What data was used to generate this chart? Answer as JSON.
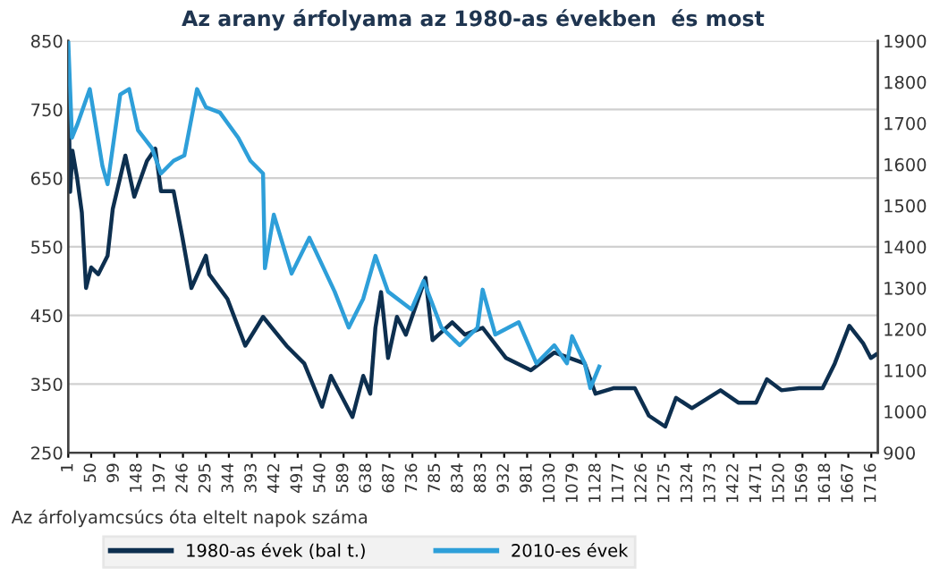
{
  "chart_data": {
    "type": "line",
    "title": "Az arany árfolyama az 1980-as években  és most",
    "xlabel": "Az árfolyamcsúcs óta eltelt napok száma",
    "xlim": [
      1,
      1730
    ],
    "xticks": [
      1,
      50,
      99,
      148,
      197,
      246,
      295,
      344,
      393,
      442,
      491,
      540,
      589,
      638,
      687,
      736,
      785,
      834,
      883,
      932,
      981,
      1030,
      1079,
      1128,
      1177,
      1226,
      1275,
      1324,
      1373,
      1422,
      1471,
      1520,
      1569,
      1618,
      1667,
      1716
    ],
    "ylim": [
      250,
      850
    ],
    "yticks": [
      250,
      350,
      450,
      550,
      650,
      750,
      850
    ],
    "y2lim": [
      900,
      1900
    ],
    "y2ticks": [
      900,
      1000,
      1100,
      1200,
      1300,
      1400,
      1500,
      1600,
      1700,
      1800,
      1900
    ],
    "grid": "y",
    "legend": "bottom",
    "line_style": "solid",
    "marker": "none",
    "series": [
      {
        "name": "1980-as évek (bal t.)",
        "color": "#0d2f4f",
        "x": [
          1,
          5,
          10,
          20,
          30,
          39,
          50,
          65,
          85,
          96,
          123,
          142,
          169,
          187,
          199,
          226,
          245,
          264,
          295,
          302,
          341,
          379,
          417,
          467,
          505,
          543,
          562,
          608,
          631,
          646,
          657,
          669,
          684,
          703,
          722,
          764,
          779,
          821,
          848,
          886,
          936,
          989,
          1039,
          1104,
          1127,
          1165,
          1211,
          1241,
          1276,
          1299,
          1333,
          1394,
          1432,
          1470,
          1493,
          1524,
          1562,
          1612,
          1638,
          1669,
          1699,
          1715,
          1726
        ],
        "values": [
          800,
          630,
          690,
          650,
          600,
          490,
          520,
          510,
          537,
          605,
          683,
          623,
          675,
          693,
          631,
          631,
          563,
          490,
          537,
          510,
          474,
          406,
          448,
          406,
          380,
          317,
          362,
          302,
          362,
          336,
          432,
          484,
          388,
          448,
          422,
          505,
          414,
          440,
          422,
          432,
          388,
          370,
          396,
          380,
          336,
          344,
          344,
          304,
          288,
          330,
          315,
          341,
          323,
          323,
          357,
          341,
          344,
          344,
          380,
          435,
          409,
          388,
          393
        ]
      },
      {
        "name": "2010-es évek",
        "color": "#2e9fd9",
        "axis": "y2",
        "x": [
          1,
          9,
          20,
          47,
          74,
          85,
          112,
          131,
          150,
          180,
          199,
          226,
          249,
          276,
          295,
          325,
          364,
          390,
          417,
          421,
          440,
          478,
          516,
          570,
          600,
          631,
          657,
          684,
          734,
          760,
          798,
          837,
          875,
          886,
          913,
          963,
          1001,
          1039,
          1066,
          1077,
          1104,
          1116,
          1135
        ],
        "values": [
          1900,
          1665,
          1696,
          1783,
          1596,
          1552,
          1770,
          1783,
          1683,
          1639,
          1578,
          1609,
          1622,
          1783,
          1739,
          1726,
          1665,
          1609,
          1578,
          1348,
          1478,
          1335,
          1422,
          1291,
          1204,
          1274,
          1378,
          1291,
          1248,
          1317,
          1204,
          1161,
          1204,
          1296,
          1187,
          1217,
          1117,
          1161,
          1117,
          1183,
          1117,
          1057,
          1109
        ]
      }
    ]
  }
}
